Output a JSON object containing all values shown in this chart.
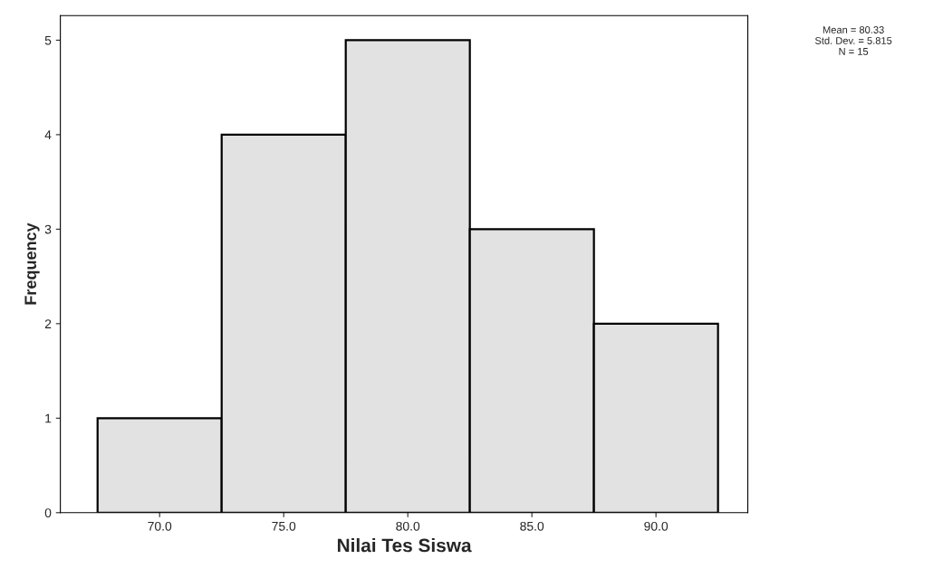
{
  "chart_data": {
    "type": "histogram",
    "xlabel": "Nilai Tes Siswa",
    "ylabel": "Frequency",
    "bins": [
      67.5,
      72.5,
      77.5,
      82.5,
      87.5,
      92.5
    ],
    "values": [
      1,
      4,
      5,
      3,
      2
    ],
    "color": "#e2e2e2",
    "xlim": [
      66,
      93.7
    ],
    "xticks": [
      {
        "value": 70,
        "label": "70.0"
      },
      {
        "value": 75,
        "label": "75.0"
      },
      {
        "value": 80,
        "label": "80.0"
      },
      {
        "value": 85,
        "label": "85.0"
      },
      {
        "value": 90,
        "label": "90.0"
      }
    ],
    "ylim": [
      0,
      5.26
    ],
    "yticks": [
      0,
      1,
      2,
      3,
      4,
      5
    ],
    "grid": false,
    "legend": false,
    "annotations": [
      "Mean = 80.33\nStd. Dev. = 5.815\nN = 15"
    ]
  }
}
